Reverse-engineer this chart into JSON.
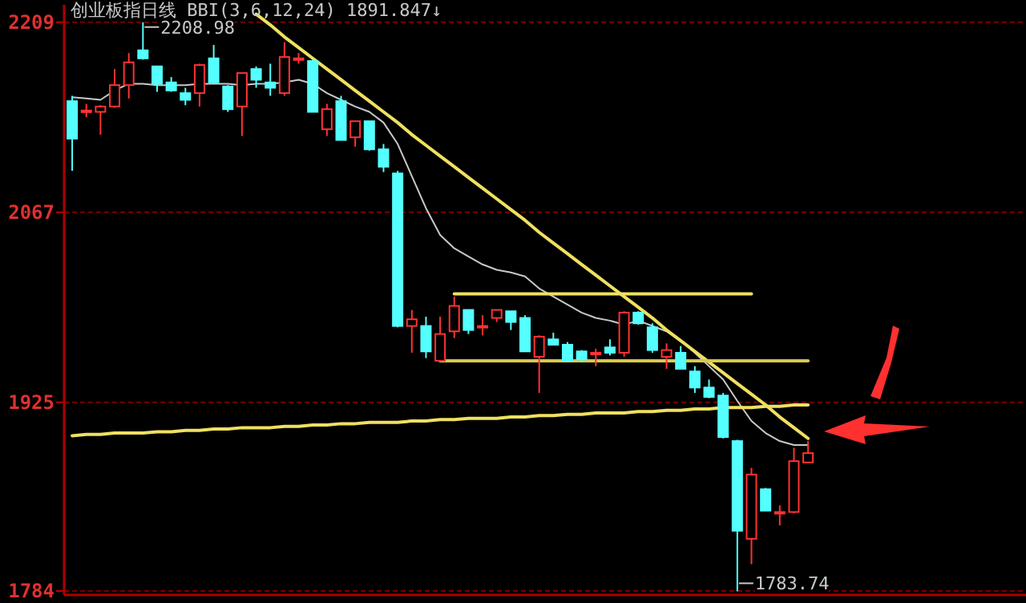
{
  "chart_data": {
    "type": "candlestick",
    "title": "创业板指日线 BBI(3,6,12,24) 1891.847↓",
    "categories": [
      null,
      null,
      null,
      null,
      null,
      null,
      null,
      null,
      null,
      null,
      null,
      null,
      null,
      null,
      null,
      null,
      null,
      null,
      null,
      null,
      null,
      null,
      null,
      null,
      null,
      null,
      null,
      null,
      null,
      null,
      null,
      null,
      null,
      null,
      null,
      null,
      null,
      null,
      null,
      null,
      null,
      null,
      null,
      null,
      null,
      null,
      null,
      null,
      null,
      null,
      null,
      null,
      null
    ],
    "ohlc": [
      [
        2150,
        2154,
        2098,
        2122
      ],
      [
        2143,
        2148,
        2138,
        2142
      ],
      [
        2142,
        2147,
        2125,
        2146
      ],
      [
        2146,
        2174,
        2145,
        2162
      ],
      [
        2162,
        2186,
        2152,
        2179
      ],
      [
        2188,
        2208.98,
        2181,
        2182
      ],
      [
        2176,
        2176,
        2157,
        2163
      ],
      [
        2164,
        2168,
        2157,
        2158
      ],
      [
        2156,
        2160,
        2147,
        2151
      ],
      [
        2156,
        2178,
        2146,
        2177
      ],
      [
        2182,
        2192,
        2163,
        2164
      ],
      [
        2161,
        2162,
        2142,
        2144
      ],
      [
        2146,
        2171,
        2124,
        2171
      ],
      [
        2174,
        2176,
        2160,
        2166
      ],
      [
        2164,
        2178,
        2154,
        2160
      ],
      [
        2156,
        2194,
        2154,
        2183
      ],
      [
        2182,
        2186,
        2178,
        2182
      ],
      [
        2180,
        2181,
        2142,
        2142
      ],
      [
        2129,
        2148,
        2124,
        2144
      ],
      [
        2150,
        2154,
        2121,
        2121
      ],
      [
        2123,
        2135,
        2116,
        2135
      ],
      [
        2135,
        2135,
        2113,
        2114
      ],
      [
        2114,
        2118,
        2097,
        2101
      ],
      [
        2096,
        2098,
        1981,
        1982
      ],
      [
        1982,
        1994,
        1962,
        1987
      ],
      [
        1982,
        1989,
        1958,
        1963
      ],
      [
        1956,
        1989,
        1956,
        1976
      ],
      [
        1978,
        2004,
        1973,
        1997
      ],
      [
        1994,
        1994,
        1976,
        1979
      ],
      [
        1982,
        1990,
        1975,
        1982
      ],
      [
        1988,
        1994,
        1985,
        1994
      ],
      [
        1993,
        1993,
        1979,
        1985
      ],
      [
        1988,
        1990,
        1963,
        1963
      ],
      [
        1959,
        1975,
        1932,
        1974
      ],
      [
        1972,
        1977,
        1968,
        1968
      ],
      [
        1968,
        1970,
        1956,
        1956
      ],
      [
        1963,
        1964,
        1955,
        1957
      ],
      [
        1962,
        1965,
        1952,
        1962
      ],
      [
        1966,
        1972,
        1960,
        1962
      ],
      [
        1962,
        1993,
        1959,
        1992
      ],
      [
        1992,
        1993,
        1983,
        1984
      ],
      [
        1981,
        1984,
        1962,
        1964
      ],
      [
        1959,
        1969,
        1950,
        1964
      ],
      [
        1962,
        1967,
        1950,
        1950
      ],
      [
        1948,
        1952,
        1932,
        1936
      ],
      [
        1936,
        1942,
        1928,
        1929
      ],
      [
        1930,
        1932,
        1898,
        1899
      ],
      [
        1896,
        1897,
        1783.74,
        1829
      ],
      [
        1823,
        1876,
        1804,
        1871
      ],
      [
        1860,
        1861,
        1844,
        1844
      ],
      [
        1843,
        1848,
        1833,
        1843
      ],
      [
        1843,
        1891,
        1842,
        1881
      ],
      [
        1880,
        1896,
        1880,
        1887
      ]
    ],
    "colors": [
      "#54ffff",
      "#ff3232",
      "#ff3232",
      "#ff3232",
      "#ff3232",
      "#54ffff",
      "#54ffff",
      "#54ffff",
      "#54ffff",
      "#ff3232",
      "#54ffff",
      "#54ffff",
      "#ff3232",
      "#54ffff",
      "#54ffff",
      "#ff3232",
      "#ff3232",
      "#54ffff",
      "#ff3232",
      "#54ffff",
      "#ff3232",
      "#54ffff",
      "#54ffff",
      "#54ffff",
      "#ff3232",
      "#54ffff",
      "#ff3232",
      "#ff3232",
      "#54ffff",
      "#ff3232",
      "#ff3232",
      "#54ffff",
      "#54ffff",
      "#ff3232",
      "#54ffff",
      "#54ffff",
      "#54ffff",
      "#ff3232",
      "#54ffff",
      "#ff3232",
      "#54ffff",
      "#54ffff",
      "#ff3232",
      "#54ffff",
      "#54ffff",
      "#54ffff",
      "#54ffff",
      "#54ffff",
      "#ff3232",
      "#54ffff",
      "#ff3232",
      "#ff3232",
      "#ff3232"
    ],
    "series": [
      {
        "type": "line",
        "color": "#c8c8c8",
        "values": [
          2153,
          2152,
          2151,
          2158,
          2163,
          2163,
          2162,
          2162,
          2162,
          2163,
          2163,
          2163,
          2162,
          2163,
          2163,
          2164,
          2166,
          2163,
          2156,
          2151,
          2146,
          2142,
          2134,
          2118,
          2094,
          2070,
          2050,
          2040,
          2034,
          2028,
          2024,
          2022,
          2019,
          2010,
          2004,
          1998,
          1992,
          1988,
          1986,
          1983,
          1986,
          1982,
          1978,
          1971,
          1962,
          1952,
          1942,
          1926,
          1911,
          1902,
          1896,
          1893,
          1893
        ]
      },
      {
        "type": "line",
        "color": "#f0e060",
        "values": [
          null,
          null,
          null,
          null,
          null,
          null,
          null,
          null,
          null,
          null,
          null,
          null,
          null,
          2215,
          2207,
          2198,
          2190,
          2182,
          2174,
          2166,
          2158,
          2150,
          2142,
          2134,
          2125,
          2117,
          2109,
          2101,
          2093,
          2085,
          2077,
          2069,
          2061,
          2052,
          2044,
          2036,
          2028,
          2020,
          2012,
          2004,
          1996,
          1988,
          1979,
          1971,
          1963,
          1955,
          1947,
          1939,
          1931,
          1923,
          1914,
          1906,
          1898
        ]
      },
      {
        "type": "line",
        "color": "#f0e060",
        "values": [
          1900,
          1901,
          1901,
          1902,
          1902,
          1902,
          1903,
          1903,
          1904,
          1904,
          1905,
          1905,
          1906,
          1906,
          1906,
          1907,
          1907,
          1908,
          1908,
          1909,
          1909,
          1910,
          1910,
          1910,
          1911,
          1911,
          1912,
          1912,
          1913,
          1913,
          1913,
          1914,
          1914,
          1915,
          1915,
          1916,
          1916,
          1917,
          1917,
          1917,
          1918,
          1918,
          1919,
          1919,
          1920,
          1920,
          1921,
          1921,
          1921,
          1922,
          1922,
          1923,
          1923
        ]
      },
      {
        "type": "line",
        "color": "#f0e060",
        "values": [
          null,
          null,
          null,
          null,
          null,
          null,
          null,
          null,
          null,
          null,
          null,
          null,
          null,
          null,
          null,
          null,
          null,
          null,
          null,
          null,
          null,
          null,
          null,
          null,
          null,
          null,
          null,
          2006,
          2006,
          2006,
          2006,
          2006,
          2006,
          2006,
          2006,
          2006,
          2006,
          2006,
          2006,
          2006,
          2006,
          2006,
          2006,
          2006,
          2006,
          2006,
          2006,
          2006,
          2006,
          null,
          null,
          null,
          null
        ]
      },
      {
        "type": "line",
        "color": "#d8c850",
        "values": [
          null,
          null,
          null,
          null,
          null,
          null,
          null,
          null,
          null,
          null,
          null,
          null,
          null,
          null,
          null,
          null,
          null,
          null,
          null,
          null,
          null,
          null,
          null,
          null,
          null,
          null,
          1956,
          1956,
          1956,
          1956,
          1956,
          1956,
          1956,
          1956,
          1956,
          1956,
          1956,
          1956,
          1956,
          1956,
          1956,
          1956,
          1956,
          1956,
          1956,
          1956,
          1956,
          1956,
          1956,
          1956,
          1956,
          1956,
          1956
        ]
      }
    ],
    "annotations": [
      "2208.98",
      "1783.74"
    ],
    "ylim": [
      1781,
      2222
    ],
    "yticks": [
      2209,
      2067,
      1925,
      1784
    ],
    "grid": "y",
    "tick_labels": "y"
  }
}
